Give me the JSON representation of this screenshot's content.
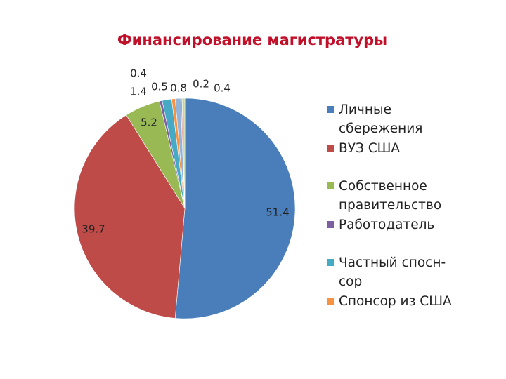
{
  "chart_data": {
    "type": "pie",
    "title": "Финансирование магистратуры",
    "categories": [
      "Личные сбережения",
      "ВУЗ США",
      "Собственное правительство",
      "Работодатель",
      "Частный спосн­сор",
      "Спонсор из США",
      null,
      null,
      null
    ],
    "values": [
      51.4,
      39.7,
      5.2,
      0.4,
      1.4,
      0.5,
      0.8,
      0.2,
      0.4
    ],
    "colors": [
      "#4a7ebb",
      "#be4b48",
      "#98b954",
      "#7d60a0",
      "#46aac5",
      "#f69240",
      "#95b3d7",
      "#d99694",
      "#c3d69b"
    ],
    "legend": "right"
  }
}
